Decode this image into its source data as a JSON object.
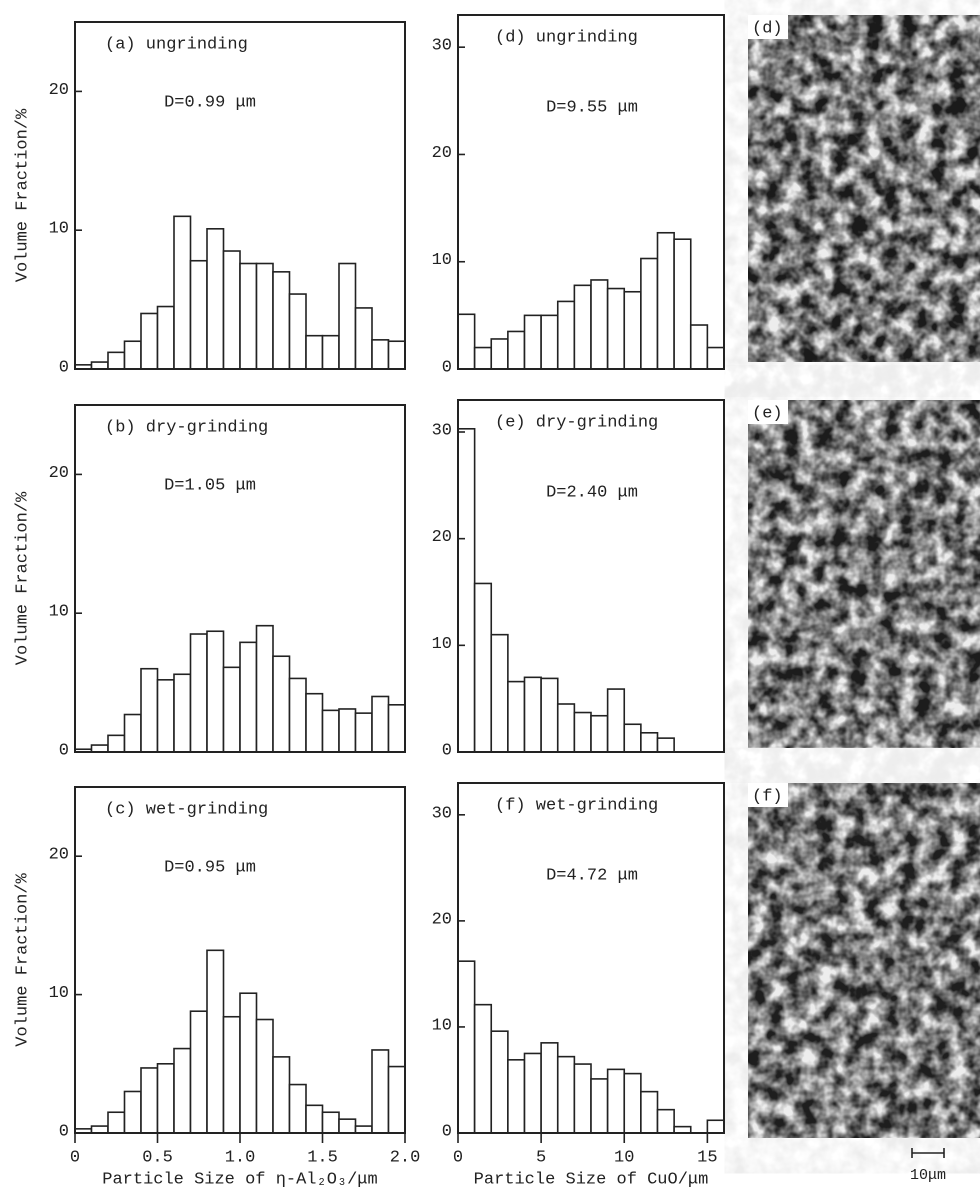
{
  "chart_data": [
    {
      "type": "histogram",
      "title": "(a) ungrinding",
      "annotation": "D=0.99 μm",
      "y_label": "Volume Fraction/%",
      "bins": [
        0,
        0.1,
        0.2,
        0.3,
        0.4,
        0.5,
        0.6,
        0.7,
        0.8,
        0.9,
        1.0,
        1.1,
        1.2,
        1.3,
        1.4,
        1.5,
        1.6,
        1.7,
        1.8,
        1.9,
        2.0
      ],
      "values": [
        0.3,
        0.5,
        1.2,
        2.0,
        4.0,
        4.5,
        11.0,
        7.8,
        10.1,
        8.5,
        7.6,
        7.6,
        7.0,
        5.4,
        2.4,
        2.4,
        7.6,
        4.4,
        2.1,
        2.0
      ],
      "xlim": [
        0,
        2.0
      ],
      "ylim": [
        0,
        25
      ],
      "yticks": [
        0,
        10,
        20
      ]
    },
    {
      "type": "histogram",
      "title": "(b) dry-grinding",
      "annotation": "D=1.05 μm",
      "y_label": "Volume Fraction/%",
      "bins": [
        0,
        0.1,
        0.2,
        0.3,
        0.4,
        0.5,
        0.6,
        0.7,
        0.8,
        0.9,
        1.0,
        1.1,
        1.2,
        1.3,
        1.4,
        1.5,
        1.6,
        1.7,
        1.8,
        1.9,
        2.0
      ],
      "values": [
        0.2,
        0.5,
        1.2,
        2.7,
        6.0,
        5.2,
        5.6,
        8.5,
        8.7,
        6.1,
        7.9,
        9.1,
        6.9,
        5.3,
        4.2,
        3.0,
        3.1,
        2.8,
        4.0,
        3.4
      ],
      "xlim": [
        0,
        2.0
      ],
      "ylim": [
        0,
        25
      ],
      "yticks": [
        0,
        10,
        20
      ]
    },
    {
      "type": "histogram",
      "title": "(c) wet-grinding",
      "annotation": "D=0.95 μm",
      "y_label": "Volume Fraction/%",
      "x_label": "Particle  Size of η-Al₂O₃/μm",
      "bins": [
        0,
        0.1,
        0.2,
        0.3,
        0.4,
        0.5,
        0.6,
        0.7,
        0.8,
        0.9,
        1.0,
        1.1,
        1.2,
        1.3,
        1.4,
        1.5,
        1.6,
        1.7,
        1.8,
        1.9,
        2.0
      ],
      "values": [
        0.3,
        0.5,
        1.5,
        3.0,
        4.7,
        5.0,
        6.1,
        8.8,
        13.2,
        8.4,
        10.1,
        8.2,
        5.5,
        3.5,
        2.0,
        1.5,
        1.0,
        0.5,
        6.0,
        4.8
      ],
      "xlim": [
        0,
        2.0
      ],
      "ylim": [
        0,
        25
      ],
      "yticks": [
        0,
        10,
        20
      ],
      "xticks": [
        0,
        0.5,
        {
          "value": 1,
          "label": "1.0"
        },
        1.5,
        {
          "value": 2,
          "label": "2.0"
        }
      ]
    },
    {
      "type": "histogram",
      "title": "(d) ungrinding",
      "annotation": "D=9.55 μm",
      "bins": [
        0,
        1,
        2,
        3,
        4,
        5,
        6,
        7,
        8,
        9,
        10,
        11,
        12,
        13,
        14,
        15,
        16
      ],
      "values": [
        5.1,
        2.0,
        2.8,
        3.5,
        5.0,
        5.0,
        6.3,
        7.8,
        8.3,
        7.5,
        7.2,
        10.3,
        12.7,
        12.1,
        4.1,
        2.0
      ],
      "xlim": [
        0,
        16
      ],
      "ylim": [
        0,
        33
      ],
      "yticks": [
        0,
        10,
        20,
        30
      ]
    },
    {
      "type": "histogram",
      "title": "(e) dry-grinding",
      "annotation": "D=2.40 μm",
      "bins": [
        0,
        1,
        2,
        3,
        4,
        5,
        6,
        7,
        8,
        9,
        10,
        11,
        12,
        13
      ],
      "values": [
        30.3,
        15.8,
        11.0,
        6.6,
        7.0,
        6.9,
        4.5,
        3.7,
        3.4,
        5.9,
        2.6,
        1.8,
        1.3
      ],
      "xlim": [
        0,
        16
      ],
      "ylim": [
        0,
        33
      ],
      "yticks": [
        0,
        10,
        20,
        30
      ]
    },
    {
      "type": "histogram",
      "title": "(f) wet-grinding",
      "annotation": "D=4.72 μm",
      "x_label": "Particle Size of CuO/μm",
      "bins": [
        0,
        1,
        2,
        3,
        4,
        5,
        6,
        7,
        8,
        9,
        10,
        11,
        12,
        13,
        14,
        15,
        16
      ],
      "values": [
        16.2,
        12.1,
        9.6,
        6.9,
        7.5,
        8.5,
        7.2,
        6.5,
        5.1,
        6.0,
        5.6,
        3.9,
        2.2,
        0.6,
        0,
        1.2
      ],
      "xlim": [
        0,
        16
      ],
      "ylim": [
        0,
        33
      ],
      "yticks": [
        0,
        10,
        20,
        30
      ],
      "xticks": [
        0,
        5,
        10,
        15
      ]
    }
  ],
  "images": [
    {
      "label": "(d)"
    },
    {
      "label": "(e)"
    },
    {
      "label": "(f)"
    }
  ],
  "scale_bar": "10μm"
}
